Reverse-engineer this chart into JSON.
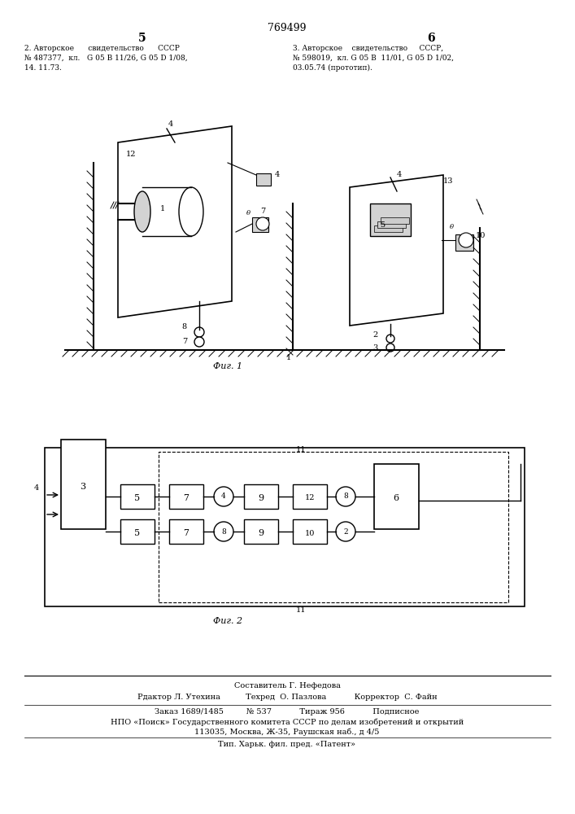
{
  "page_number_center": "769499",
  "page_number_left": "5",
  "page_number_right": "6",
  "bg_color": "#ffffff",
  "text_color": "#000000",
  "header_left_line1": "2. Авторское      свидетельство      СССР",
  "header_left_line2": "№ 487377,  кл.   G 05 B 11/26, G 05 D 1/08,",
  "header_left_line3": "14. 11.73.",
  "header_right_line1": "3. Авторское    свидетельство     СССР,",
  "header_right_line2": "№ 598019,  кл. G 05 B  11/01, G 05 D 1​​/02,",
  "header_right_line3": "03.05.74 (прототип).",
  "fig1_caption": "Фиг. 1",
  "fig2_caption": "Фиг. 2",
  "footer_line1": "Составитель Г. Нефедова",
  "footer_line2": "Рдактор Л. Утехина         Техред  О. Пазлова          Корректор  С. Файн",
  "footer_line3": "Заказ 1689/1485        № 537          Тираж 956          Подписное",
  "footer_line4": "НПО «Поиск» Государственного комитета СССР по делам изобретений и открытий",
  "footer_line5": "113035, Москва, Ж-35, Раушская наб., д 4/5",
  "footer_line6": "Тип. Харьк. фил. пред. «Патент»"
}
